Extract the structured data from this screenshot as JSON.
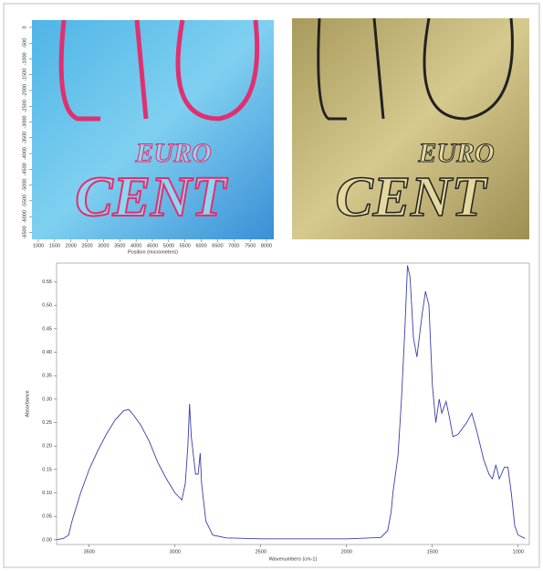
{
  "chart_data": [
    {
      "type": "heatmap",
      "xlabel": "Position (micrometers)",
      "xlim": [
        804,
        8224
      ],
      "xticks": [
        1000,
        1500,
        2000,
        2500,
        3000,
        3500,
        4000,
        4500,
        5000,
        5500,
        6000,
        6500,
        7000,
        7500,
        8000
      ],
      "ylim": [
        230,
        -6720
      ],
      "yticks": [
        0,
        -500,
        -1000,
        -1500,
        -2000,
        -2500,
        -3000,
        -3500,
        -4000,
        -4500,
        -5000,
        -5500,
        -6000,
        -6500
      ],
      "image_text": [
        "EURO",
        "CENT"
      ]
    },
    {
      "type": "line",
      "xlabel": "Wavenumbers (cm-1)",
      "ylabel": "Absorbance",
      "xlim": [
        3690,
        935
      ],
      "xticks": [
        3500,
        3000,
        2500,
        2000,
        1500,
        1000
      ],
      "ylim": [
        -0.01,
        0.59
      ],
      "yticks": [
        {
          "value": 0,
          "label": "0.00"
        },
        0.05,
        {
          "value": 0.1,
          "label": "0.10"
        },
        0.15,
        {
          "value": 0.2,
          "label": "0.20"
        },
        0.25,
        {
          "value": 0.3,
          "label": "0.30"
        },
        0.35,
        {
          "value": 0.4,
          "label": "0.40"
        },
        0.45,
        {
          "value": 0.5,
          "label": "0.50"
        },
        0.55
      ],
      "series": [
        {
          "color": "#3a3fa8",
          "x": [
            3690,
            3650,
            3620,
            3600,
            3550,
            3500,
            3450,
            3400,
            3350,
            3300,
            3270,
            3250,
            3200,
            3150,
            3100,
            3050,
            3000,
            2960,
            2940,
            2925,
            2915,
            2905,
            2880,
            2865,
            2853,
            2845,
            2820,
            2780,
            2700,
            2500,
            2000,
            1800,
            1760,
            1740,
            1730,
            1700,
            1680,
            1660,
            1645,
            1630,
            1610,
            1590,
            1560,
            1540,
            1520,
            1500,
            1480,
            1460,
            1445,
            1420,
            1400,
            1380,
            1350,
            1300,
            1270,
            1240,
            1200,
            1170,
            1150,
            1130,
            1110,
            1080,
            1060,
            1040,
            1020,
            1000,
            960
          ],
          "values": [
            0,
            0.003,
            0.01,
            0.04,
            0.1,
            0.15,
            0.19,
            0.225,
            0.255,
            0.275,
            0.278,
            0.27,
            0.245,
            0.21,
            0.165,
            0.13,
            0.1,
            0.085,
            0.12,
            0.2,
            0.29,
            0.22,
            0.14,
            0.14,
            0.185,
            0.12,
            0.04,
            0.01,
            0.004,
            0.002,
            0.002,
            0.005,
            0.02,
            0.06,
            0.1,
            0.18,
            0.3,
            0.45,
            0.585,
            0.56,
            0.43,
            0.39,
            0.48,
            0.53,
            0.5,
            0.33,
            0.25,
            0.3,
            0.27,
            0.295,
            0.26,
            0.22,
            0.225,
            0.25,
            0.27,
            0.23,
            0.17,
            0.14,
            0.13,
            0.16,
            0.13,
            0.155,
            0.155,
            0.1,
            0.03,
            0.01,
            0.003
          ]
        }
      ]
    }
  ],
  "photo": {
    "text": [
      "EURO",
      "CENT"
    ]
  }
}
